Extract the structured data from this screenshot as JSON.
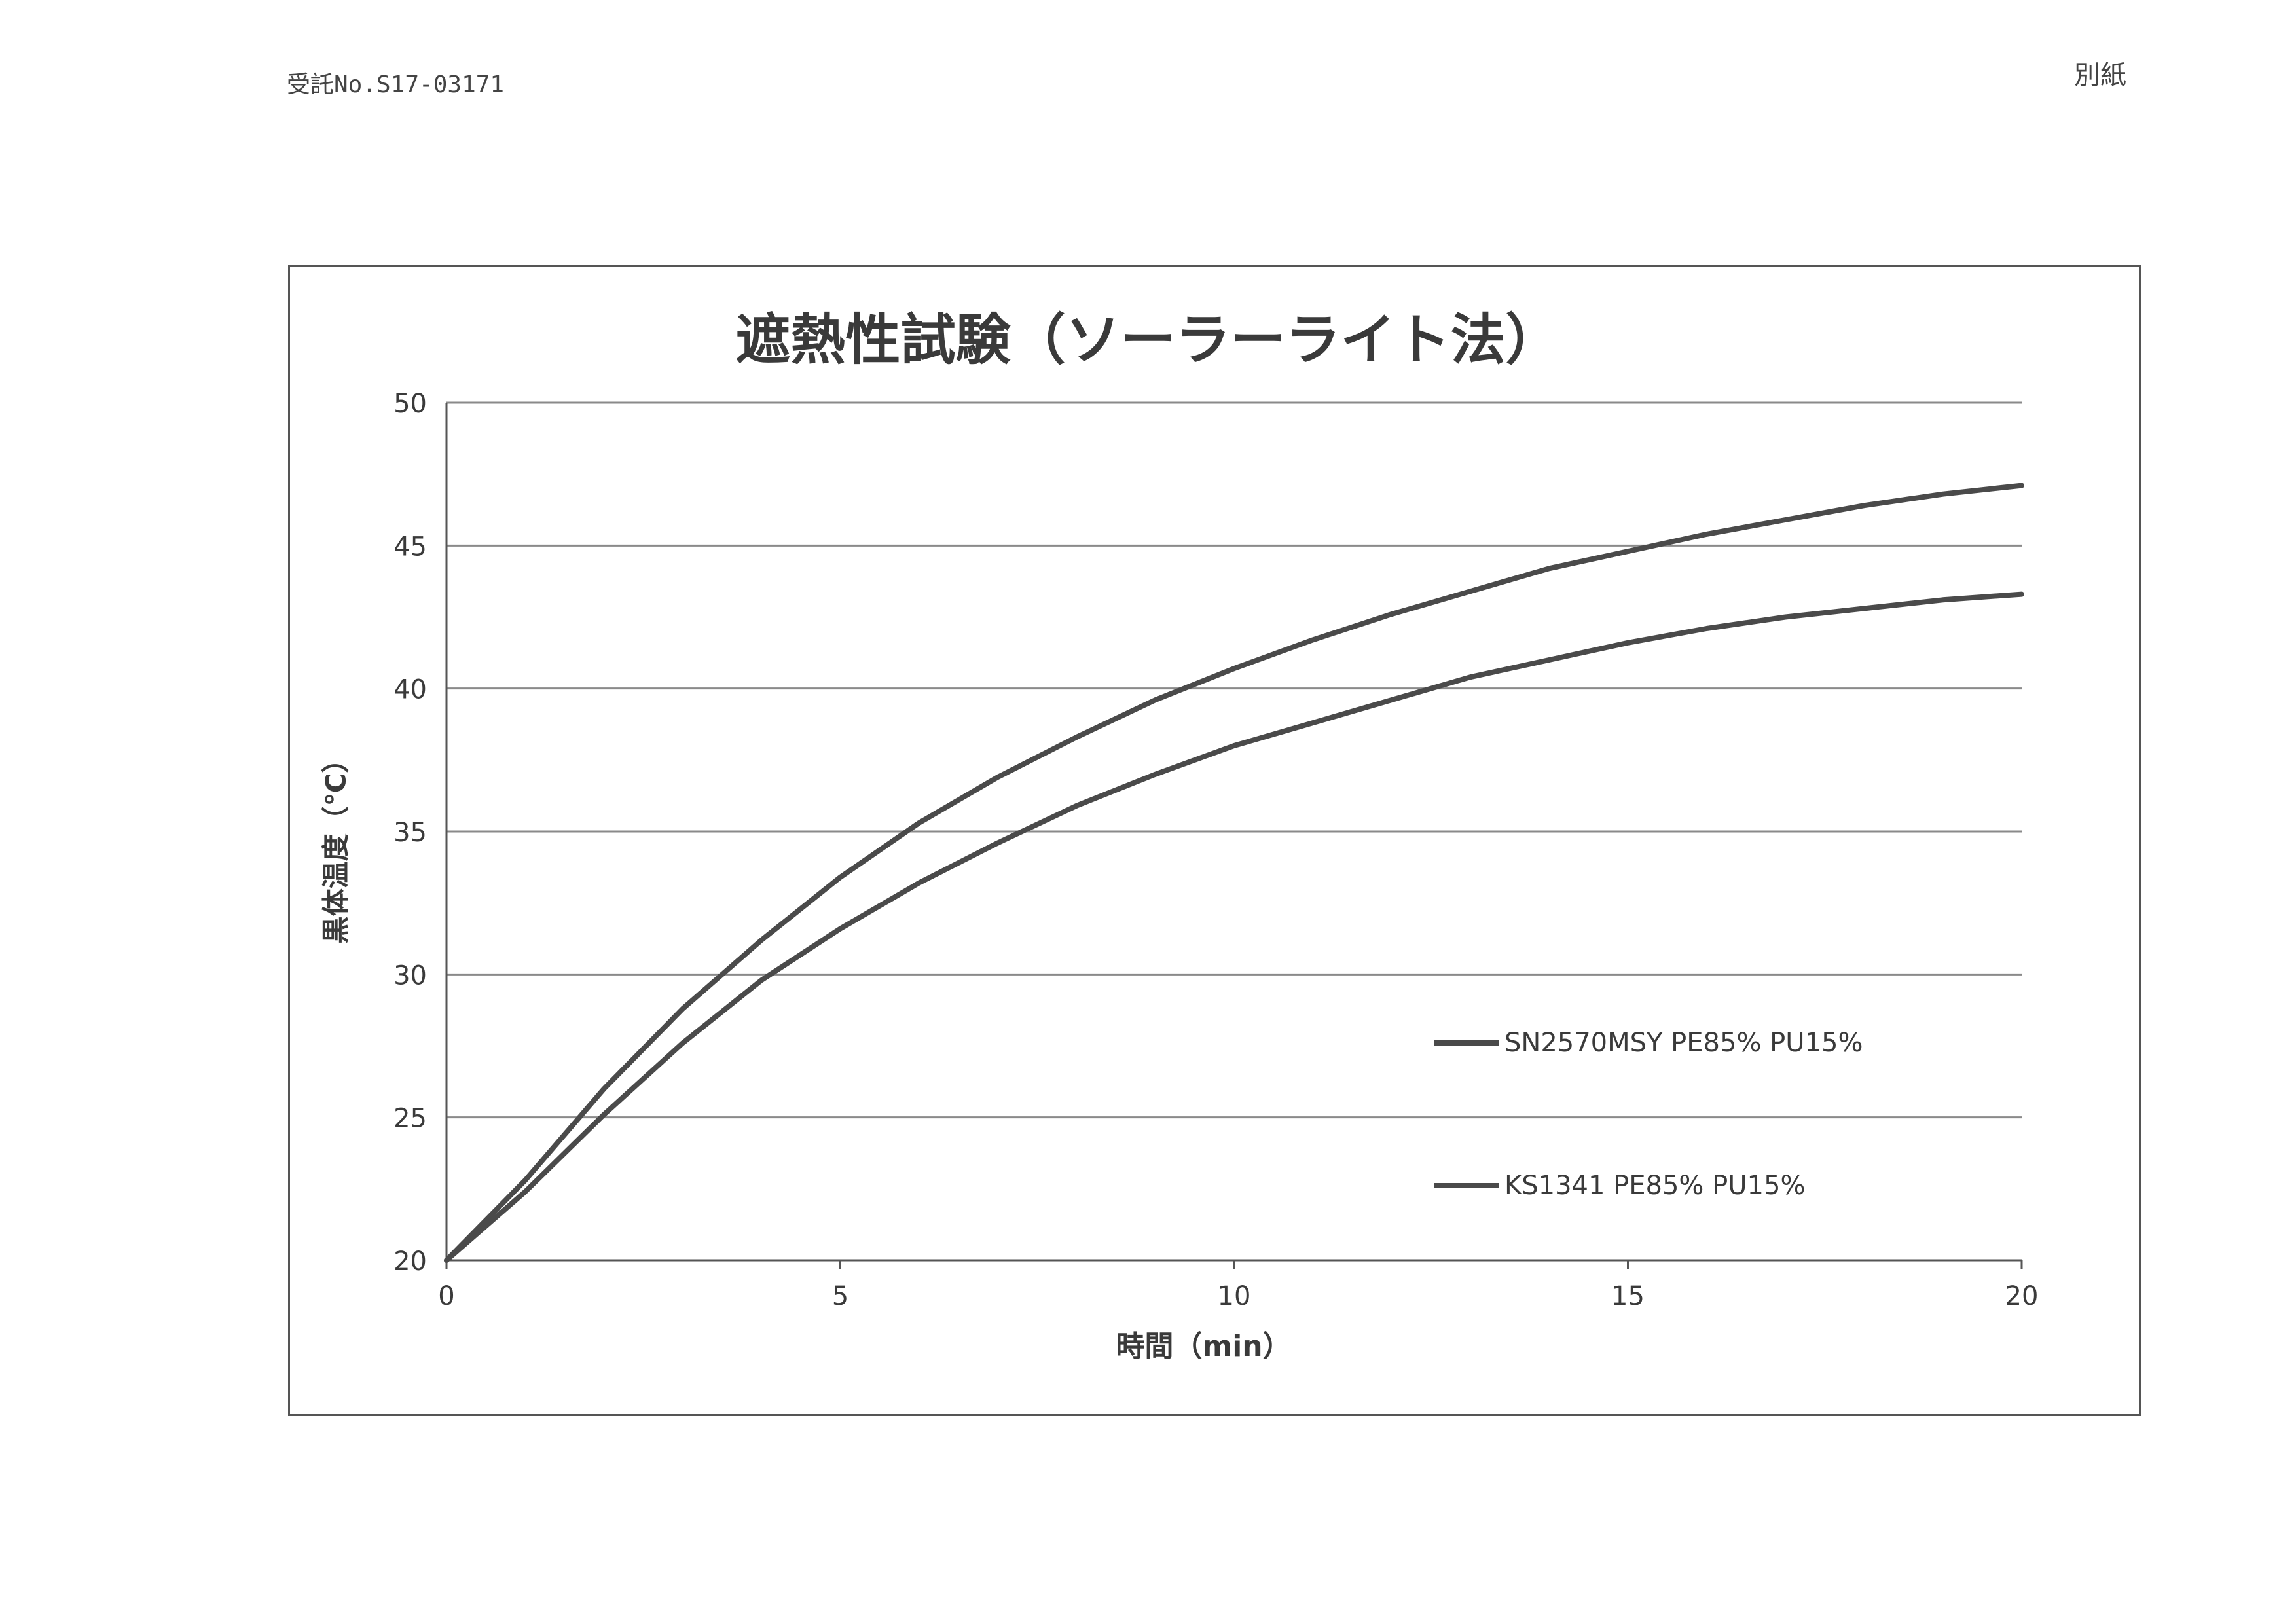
{
  "header": {
    "reference": "受託No.S17-03171",
    "note": "別紙"
  },
  "chart_data": {
    "type": "line",
    "title": "遮熱性試験（ソーラーライト法）",
    "xlabel": "時間（min）",
    "ylabel": "黒体温度（℃）",
    "xlim": [
      0,
      20
    ],
    "ylim": [
      20,
      50
    ],
    "x_ticks": [
      0,
      5,
      10,
      15,
      20
    ],
    "y_ticks": [
      20,
      25,
      30,
      35,
      40,
      45,
      50
    ],
    "grid": "horizontal",
    "legend_position": "bottom-right",
    "series": [
      {
        "name": "SN2570MSY PE85% PU15%",
        "x": [
          0,
          1,
          2,
          3,
          4,
          5,
          6,
          7,
          8,
          9,
          10,
          11,
          12,
          13,
          14,
          15,
          16,
          17,
          18,
          19,
          20
        ],
        "values": [
          20.0,
          22.8,
          26.0,
          28.8,
          31.2,
          33.4,
          35.3,
          36.9,
          38.3,
          39.6,
          40.7,
          41.7,
          42.6,
          43.4,
          44.2,
          44.8,
          45.4,
          45.9,
          46.4,
          46.8,
          47.1
        ]
      },
      {
        "name": "KS1341 PE85% PU15%",
        "x": [
          0,
          1,
          2,
          3,
          4,
          5,
          6,
          7,
          8,
          9,
          10,
          11,
          12,
          13,
          14,
          15,
          16,
          17,
          18,
          19,
          20
        ],
        "values": [
          20.0,
          22.4,
          25.1,
          27.6,
          29.8,
          31.6,
          33.2,
          34.6,
          35.9,
          37.0,
          38.0,
          38.8,
          39.6,
          40.4,
          41.0,
          41.6,
          42.1,
          42.5,
          42.8,
          43.1,
          43.3
        ]
      }
    ]
  },
  "colors": {
    "series_line": "#4a4a4a",
    "grid": "#8a8a8a",
    "axis": "#555555"
  }
}
